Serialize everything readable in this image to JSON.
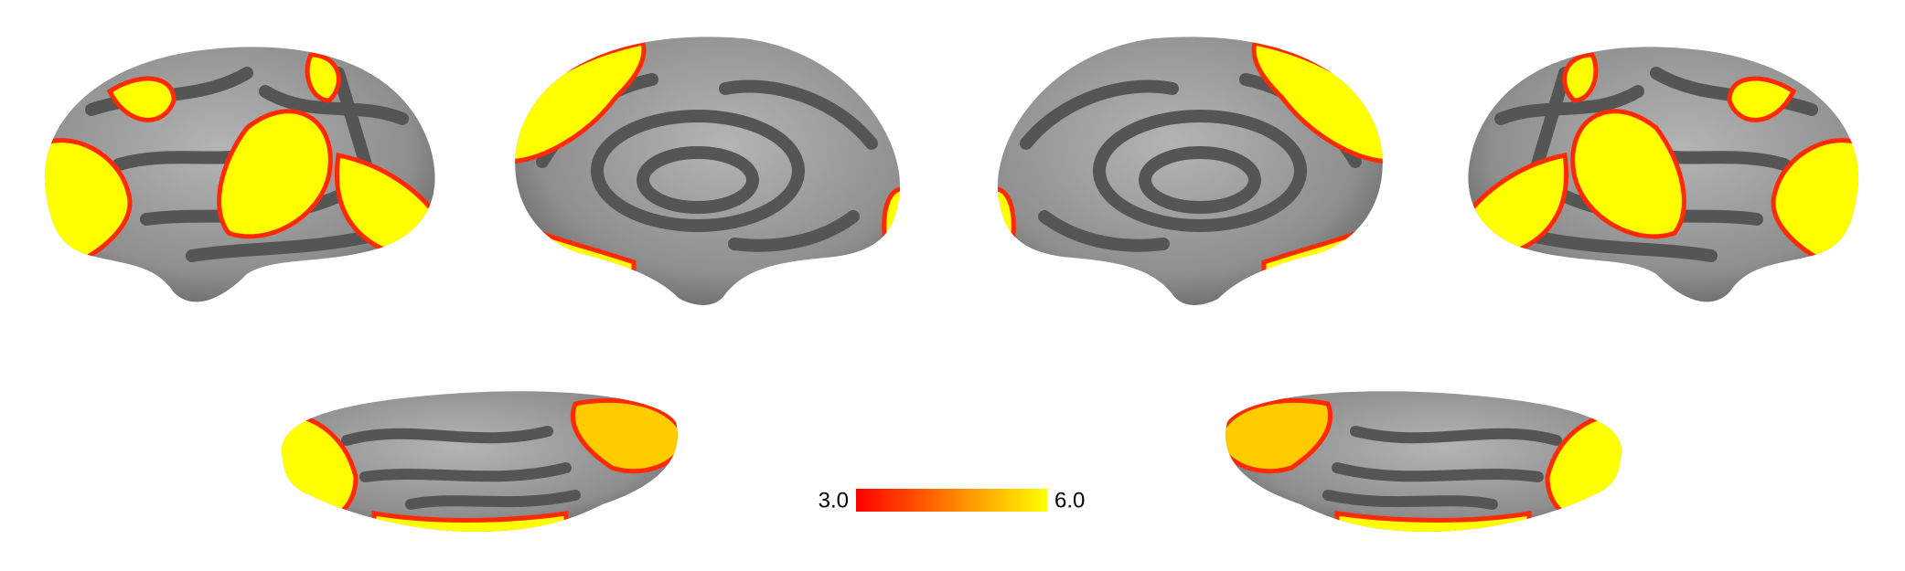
{
  "colorbar": {
    "labels": [
      "3.0",
      "6.0"
    ],
    "colors": [
      "#ff0000",
      "#ffff00"
    ]
  }
}
